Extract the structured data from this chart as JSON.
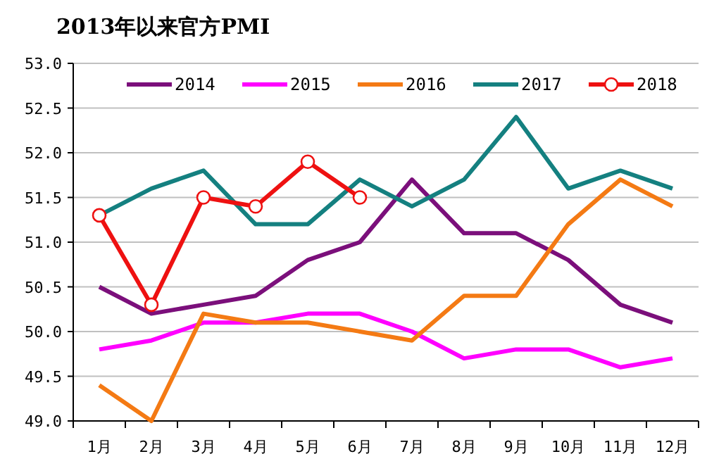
{
  "chart_data": {
    "type": "line",
    "title": "2013年以来官方PMI",
    "categories": [
      "1月",
      "2月",
      "3月",
      "4月",
      "5月",
      "6月",
      "7月",
      "8月",
      "9月",
      "10月",
      "11月",
      "12月"
    ],
    "series": [
      {
        "name": "2014",
        "color": "#7b0f7b",
        "values": [
          50.5,
          50.2,
          50.3,
          50.4,
          50.8,
          51.0,
          51.7,
          51.1,
          51.1,
          50.8,
          50.3,
          50.1
        ]
      },
      {
        "name": "2015",
        "color": "#ff00ff",
        "values": [
          49.8,
          49.9,
          50.1,
          50.1,
          50.2,
          50.2,
          50.0,
          49.7,
          49.8,
          49.8,
          49.6,
          49.7
        ]
      },
      {
        "name": "2016",
        "color": "#f47a14",
        "values": [
          49.4,
          49.0,
          50.2,
          50.1,
          50.1,
          50.0,
          49.9,
          50.4,
          50.4,
          51.2,
          51.7,
          51.4
        ]
      },
      {
        "name": "2017",
        "color": "#148080",
        "values": [
          51.3,
          51.6,
          51.8,
          51.2,
          51.2,
          51.7,
          51.4,
          51.7,
          52.4,
          51.6,
          51.8,
          51.6
        ]
      },
      {
        "name": "2018",
        "color": "#ee1111",
        "marker": "circle",
        "values": [
          51.3,
          50.3,
          51.5,
          51.4,
          51.9,
          51.5,
          null,
          null,
          null,
          null,
          null,
          null
        ]
      }
    ],
    "ylim": [
      49.0,
      53.0
    ],
    "yticks": [
      {
        "value": 49.0,
        "label": "49.0"
      },
      {
        "value": 49.5,
        "label": "49.5"
      },
      {
        "value": 50.0,
        "label": "50.0"
      },
      {
        "value": 50.5,
        "label": "50.5"
      },
      {
        "value": 51.0,
        "label": "51.0"
      },
      {
        "value": 51.5,
        "label": "51.5"
      },
      {
        "value": 52.0,
        "label": "52.0"
      },
      {
        "value": 52.5,
        "label": "52.5"
      },
      {
        "value": 53.0,
        "label": "53.0"
      }
    ],
    "grid": "y",
    "legend": "top"
  }
}
